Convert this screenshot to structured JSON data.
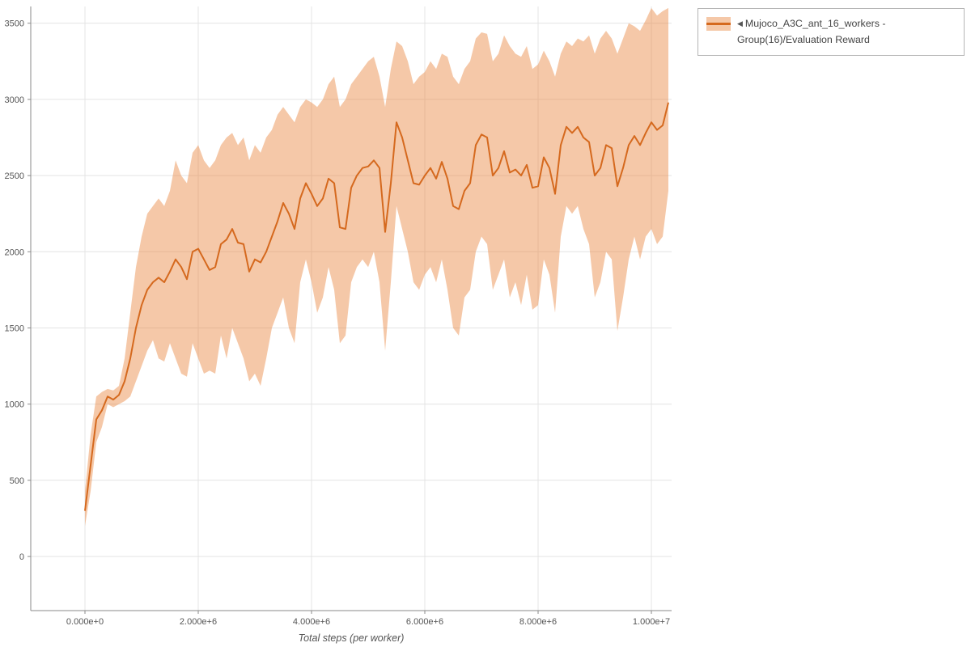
{
  "legend": {
    "collapse_icon": "◀",
    "label": "Mujoco_A3C_ant_16_workers - Group(16)/Evaluation Reward"
  },
  "chart_data": {
    "type": "line",
    "title": "",
    "xlabel": "Total steps (per worker)",
    "ylabel": "",
    "grid": true,
    "legend_position": "top-right",
    "legend_entries": [
      "Mujoco_A3C_ant_16_workers - Group(16)/Evaluation Reward"
    ],
    "xlim": [
      -957000,
      10357000
    ],
    "ylim": [
      -355,
      3610
    ],
    "xticks": {
      "values": [
        0,
        2000000,
        4000000,
        6000000,
        8000000,
        10000000
      ],
      "labels": [
        "0.000e+0",
        "2.000e+6",
        "4.000e+6",
        "6.000e+6",
        "8.000e+6",
        "1.000e+7"
      ]
    },
    "yticks": {
      "values": [
        0,
        500,
        1000,
        1500,
        2000,
        2500,
        3000,
        3500
      ],
      "labels": [
        "0",
        "500",
        "1000",
        "1500",
        "2000",
        "2500",
        "3000",
        "3500"
      ]
    },
    "series": [
      {
        "name": "Mujoco_A3C_ant_16_workers - Group(16)/Evaluation Reward",
        "line_color": "#d5691e",
        "band_color": "#e8853d",
        "band_opacity": 0.45,
        "x_e6": [
          0,
          0.1,
          0.2,
          0.3,
          0.4,
          0.5,
          0.6,
          0.7,
          0.8,
          0.9,
          1,
          1.1,
          1.2,
          1.3,
          1.4,
          1.5,
          1.6,
          1.7,
          1.8,
          1.9,
          2,
          2.1,
          2.2,
          2.3,
          2.4,
          2.5,
          2.6,
          2.7,
          2.8,
          2.9,
          3,
          3.1,
          3.2,
          3.3,
          3.4,
          3.5,
          3.6,
          3.7,
          3.8,
          3.9,
          4,
          4.1,
          4.2,
          4.3,
          4.4,
          4.5,
          4.6,
          4.7,
          4.8,
          4.9,
          5,
          5.1,
          5.2,
          5.3,
          5.4,
          5.5,
          5.6,
          5.7,
          5.8,
          5.9,
          6,
          6.1,
          6.2,
          6.3,
          6.4,
          6.5,
          6.6,
          6.7,
          6.8,
          6.9,
          7,
          7.1,
          7.2,
          7.3,
          7.4,
          7.5,
          7.6,
          7.7,
          7.8,
          7.9,
          8,
          8.1,
          8.2,
          8.3,
          8.4,
          8.5,
          8.6,
          8.7,
          8.8,
          8.9,
          9,
          9.1,
          9.2,
          9.3,
          9.4,
          9.5,
          9.6,
          9.7,
          9.8,
          9.9,
          10,
          10.1,
          10.2,
          10.3
        ],
        "mean": [
          300,
          600,
          900,
          960,
          1050,
          1030,
          1060,
          1150,
          1300,
          1500,
          1650,
          1750,
          1800,
          1830,
          1800,
          1870,
          1950,
          1900,
          1820,
          2000,
          2020,
          1950,
          1880,
          1900,
          2050,
          2080,
          2150,
          2060,
          2050,
          1870,
          1950,
          1930,
          2000,
          2100,
          2200,
          2320,
          2250,
          2150,
          2350,
          2450,
          2380,
          2300,
          2350,
          2480,
          2450,
          2160,
          2150,
          2420,
          2500,
          2550,
          2560,
          2600,
          2550,
          2130,
          2450,
          2850,
          2750,
          2600,
          2450,
          2440,
          2500,
          2550,
          2480,
          2590,
          2480,
          2300,
          2280,
          2400,
          2450,
          2700,
          2770,
          2750,
          2500,
          2550,
          2660,
          2520,
          2540,
          2500,
          2570,
          2420,
          2430,
          2620,
          2550,
          2380,
          2700,
          2820,
          2780,
          2820,
          2750,
          2720,
          2500,
          2550,
          2700,
          2680,
          2430,
          2550,
          2700,
          2760,
          2700,
          2780,
          2850,
          2800,
          2830,
          2980
        ],
        "upper": [
          430,
          800,
          1050,
          1080,
          1100,
          1090,
          1120,
          1300,
          1600,
          1900,
          2100,
          2250,
          2300,
          2350,
          2300,
          2400,
          2600,
          2500,
          2450,
          2650,
          2700,
          2600,
          2550,
          2600,
          2700,
          2750,
          2780,
          2700,
          2750,
          2600,
          2700,
          2650,
          2750,
          2800,
          2900,
          2950,
          2900,
          2850,
          2950,
          3000,
          2980,
          2950,
          3000,
          3100,
          3150,
          2950,
          3000,
          3100,
          3150,
          3200,
          3250,
          3280,
          3150,
          2950,
          3200,
          3380,
          3350,
          3250,
          3100,
          3150,
          3180,
          3250,
          3200,
          3300,
          3280,
          3150,
          3100,
          3200,
          3250,
          3400,
          3440,
          3430,
          3250,
          3300,
          3420,
          3350,
          3300,
          3280,
          3350,
          3200,
          3230,
          3320,
          3250,
          3150,
          3300,
          3380,
          3350,
          3400,
          3380,
          3420,
          3300,
          3400,
          3450,
          3400,
          3300,
          3400,
          3500,
          3480,
          3450,
          3520,
          3600,
          3550,
          3580,
          3600
        ],
        "lower": [
          200,
          430,
          750,
          850,
          1000,
          980,
          1000,
          1020,
          1050,
          1150,
          1250,
          1350,
          1420,
          1300,
          1280,
          1400,
          1300,
          1200,
          1180,
          1400,
          1300,
          1200,
          1220,
          1200,
          1450,
          1300,
          1500,
          1400,
          1300,
          1150,
          1200,
          1120,
          1300,
          1500,
          1600,
          1700,
          1500,
          1400,
          1800,
          1950,
          1800,
          1600,
          1700,
          1900,
          1750,
          1400,
          1450,
          1800,
          1900,
          1950,
          1900,
          2000,
          1800,
          1350,
          1800,
          2300,
          2150,
          2000,
          1800,
          1750,
          1850,
          1900,
          1800,
          1950,
          1750,
          1500,
          1450,
          1700,
          1750,
          2000,
          2100,
          2050,
          1750,
          1850,
          1950,
          1700,
          1800,
          1650,
          1850,
          1620,
          1650,
          1950,
          1850,
          1600,
          2100,
          2300,
          2250,
          2300,
          2150,
          2050,
          1700,
          1800,
          2000,
          1950,
          1480,
          1700,
          1950,
          2100,
          1950,
          2100,
          2150,
          2050,
          2100,
          2400
        ]
      }
    ]
  }
}
